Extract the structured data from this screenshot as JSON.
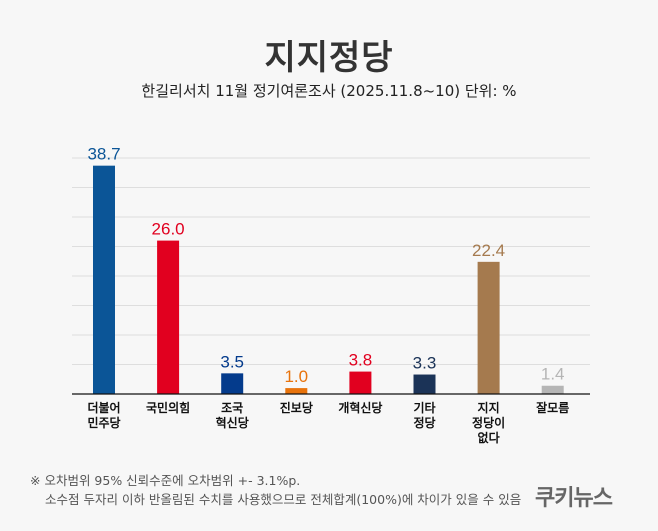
{
  "chart_data": {
    "type": "bar",
    "title": "지지정당",
    "subtitle": "한길리서치 11월 정기여론조사 (2025.11.8~10) 단위: %",
    "categories": [
      "더불어\n민주당",
      "국민의힘",
      "조국\n혁신당",
      "진보당",
      "개혁신당",
      "기타\n정당",
      "지지\n정당이\n없다",
      "잘모름"
    ],
    "values": [
      38.7,
      26.0,
      3.5,
      1.0,
      3.8,
      3.3,
      22.4,
      1.4
    ],
    "labels": [
      "38.7",
      "26.0",
      "3.5",
      "1.0",
      "3.8",
      "3.3",
      "22.4",
      "1.4"
    ],
    "colors": [
      "#0b5597",
      "#e1001f",
      "#043b8c",
      "#e8730c",
      "#e1001f",
      "#1b3357",
      "#a57a4e",
      "#b5b5b5"
    ],
    "ylim": [
      0,
      40
    ],
    "grid": true
  },
  "notes": {
    "line1": "※ 오차범위 95% 신뢰수준에 오차범위 +- 3.1%p.",
    "line2": "소수점 두자리 이하 반올림된 수치를 사용했으므로 전체합계(100%)에 차이가 있을 수 있음"
  },
  "logo": "쿠키뉴스"
}
